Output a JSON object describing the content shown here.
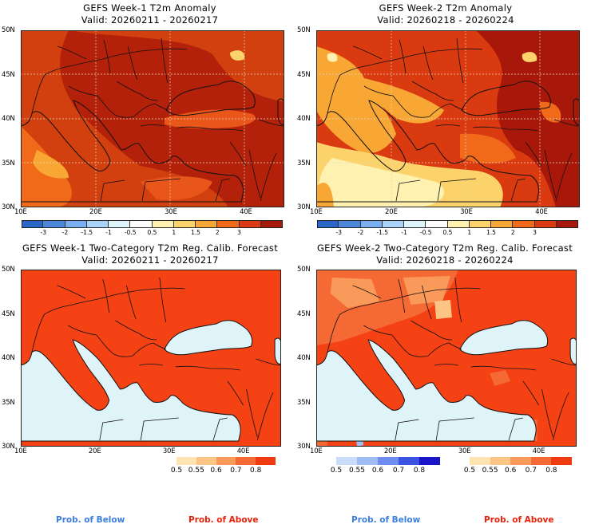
{
  "panels": {
    "w1_anom": {
      "title": "GEFS Week-1 T2m Anomaly",
      "valid": "Valid: 20260211 - 20260217"
    },
    "w2_anom": {
      "title": "GEFS Week-2 T2m Anomaly",
      "valid": "Valid: 20260218 - 20260224"
    },
    "w1_prob": {
      "title": "GEFS Week-1 Two-Category T2m Reg. Calib. Forecast",
      "valid": "Valid: 20260211 - 20260217"
    },
    "w2_prob": {
      "title": "GEFS Week-2 Two-Category T2m Reg. Calib. Forecast",
      "valid": "Valid: 20260218 - 20260224"
    }
  },
  "axes": {
    "lat_labels": [
      "50N",
      "45N",
      "40N",
      "35N",
      "30N"
    ],
    "lon_labels": [
      "10E",
      "20E",
      "30E",
      "40E"
    ]
  },
  "anomaly_colorbar": {
    "ticks": [
      "-3",
      "-2",
      "-1.5",
      "-1",
      "-0.5",
      "0.5",
      "1",
      "1.5",
      "2",
      "3"
    ],
    "colors": [
      "#2a66c9",
      "#4c86da",
      "#79aef0",
      "#a9d2f6",
      "#dff3fb",
      "#ffffff",
      "#fff2b0",
      "#fcd36a",
      "#f8a734",
      "#f06a1a",
      "#d93a10",
      "#a8180a"
    ]
  },
  "prob_colorbar": {
    "ticks": [
      "0.5",
      "0.55",
      "0.6",
      "0.7",
      "0.8"
    ],
    "above_colors": [
      "#ffe4b2",
      "#fcc585",
      "#f99a5a",
      "#f56a34",
      "#f03a10"
    ],
    "below_colors": [
      "#c9dcfa",
      "#9fbcf4",
      "#6f8cf0",
      "#3c52e2",
      "#1a15c8"
    ]
  },
  "footer": {
    "below": "Prob. of Below",
    "above": "Prob. of Above"
  },
  "colors": {
    "sea": "#dff4f8",
    "land_above": "#f44214",
    "anom_base": "#d1400e",
    "anom_deep": "#b3210b",
    "below_text": "#3a7fe0",
    "above_text": "#e8200a"
  }
}
